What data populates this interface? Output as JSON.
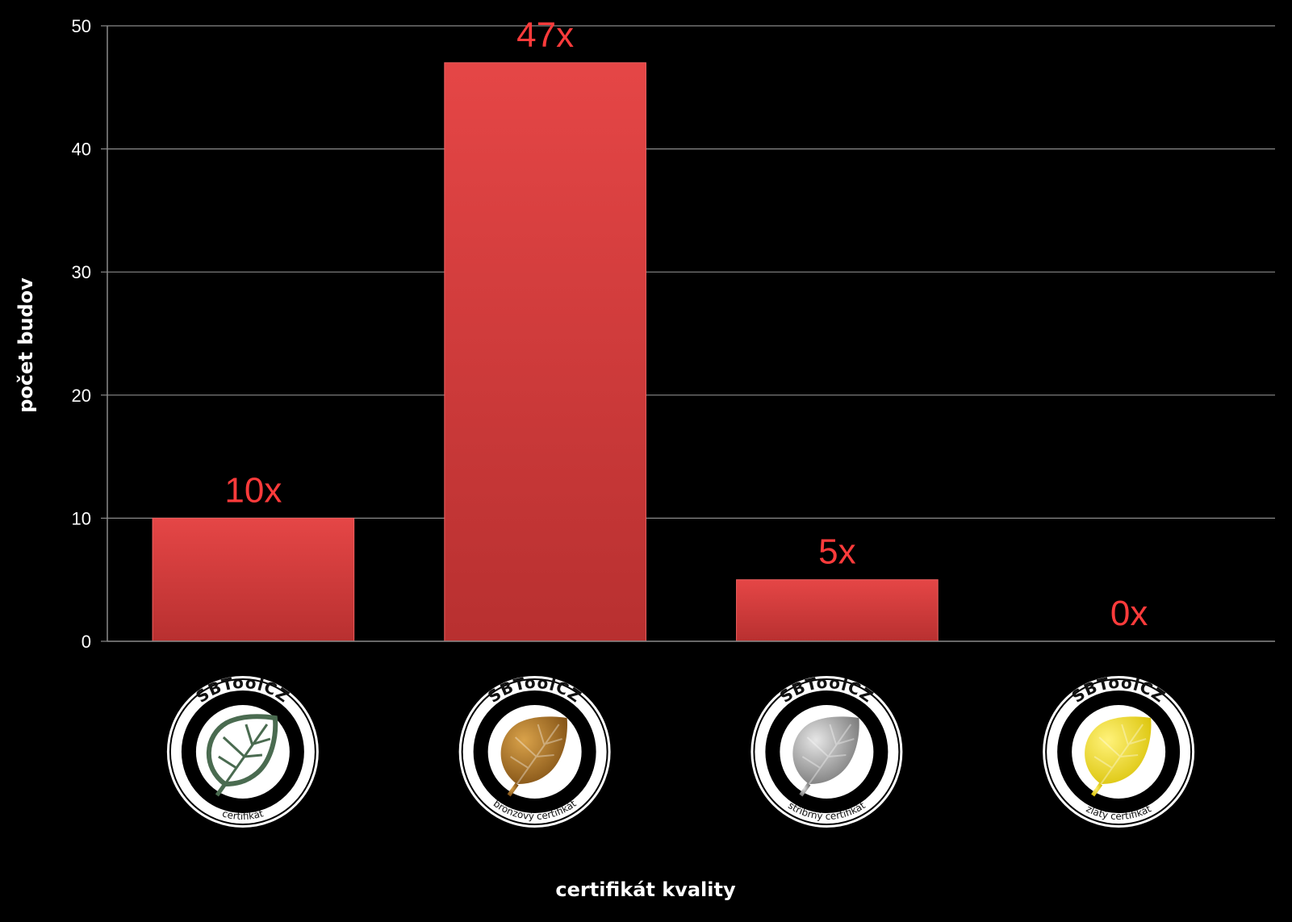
{
  "chart_data": {
    "type": "bar",
    "xlabel": "certifikát kvality",
    "ylabel": "počet budov",
    "ylim": [
      0,
      50
    ],
    "yticks": [
      0,
      10,
      20,
      30,
      40,
      50
    ],
    "grid": true,
    "categories": [
      "certifikát",
      "bronzový certifikát",
      "stříbrný certifikát",
      "zlatý certifikát"
    ],
    "values": [
      10,
      47,
      5,
      0
    ],
    "data_labels": [
      "10x",
      "47x",
      "5x",
      "0x"
    ],
    "bar_color": "#d93a3a",
    "label_color": "#ff3b3b",
    "badges": [
      {
        "top_text": "SBToolCZ",
        "bottom_text": "certifikát",
        "leaf": "outline-green",
        "leaf_color": "#4a6b50"
      },
      {
        "top_text": "SBToolCZ",
        "bottom_text": "bronzový certifikát",
        "leaf": "filled",
        "leaf_color": "#a8701e"
      },
      {
        "top_text": "SBToolCZ",
        "bottom_text": "stříbrný certifikát",
        "leaf": "filled",
        "leaf_color": "#8f8f8f"
      },
      {
        "top_text": "SBToolCZ",
        "bottom_text": "zlatý certifikát",
        "leaf": "filled",
        "leaf_color": "#e8d820"
      }
    ]
  }
}
